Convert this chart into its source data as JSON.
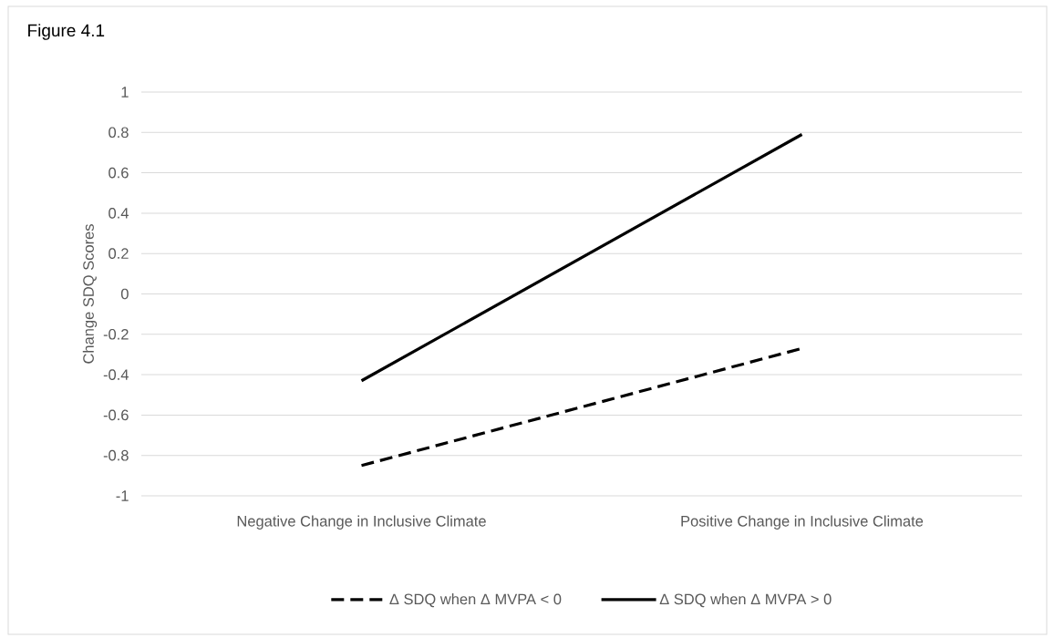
{
  "chart_data": {
    "type": "line",
    "title": "Figure 4.1",
    "ylabel": "Change SDQ Scores",
    "categories": [
      "Negative Change in Inclusive Climate",
      "Positive Change in Inclusive Climate"
    ],
    "series": [
      {
        "name": "Δ SDQ when Δ MVPA < 0",
        "color": "#000000",
        "line_style": "dashed",
        "values": [
          -0.85,
          -0.27
        ]
      },
      {
        "name": "Δ SDQ when Δ MVPA > 0",
        "color": "#000000",
        "line_style": "solid",
        "values": [
          -0.43,
          0.79
        ]
      }
    ],
    "ylim": [
      -1,
      1
    ],
    "yticks": [
      -1,
      -0.8,
      -0.6,
      -0.4,
      -0.2,
      0,
      0.2,
      0.4,
      0.6,
      0.8,
      1
    ],
    "grid": "y",
    "legend": "bottom"
  }
}
